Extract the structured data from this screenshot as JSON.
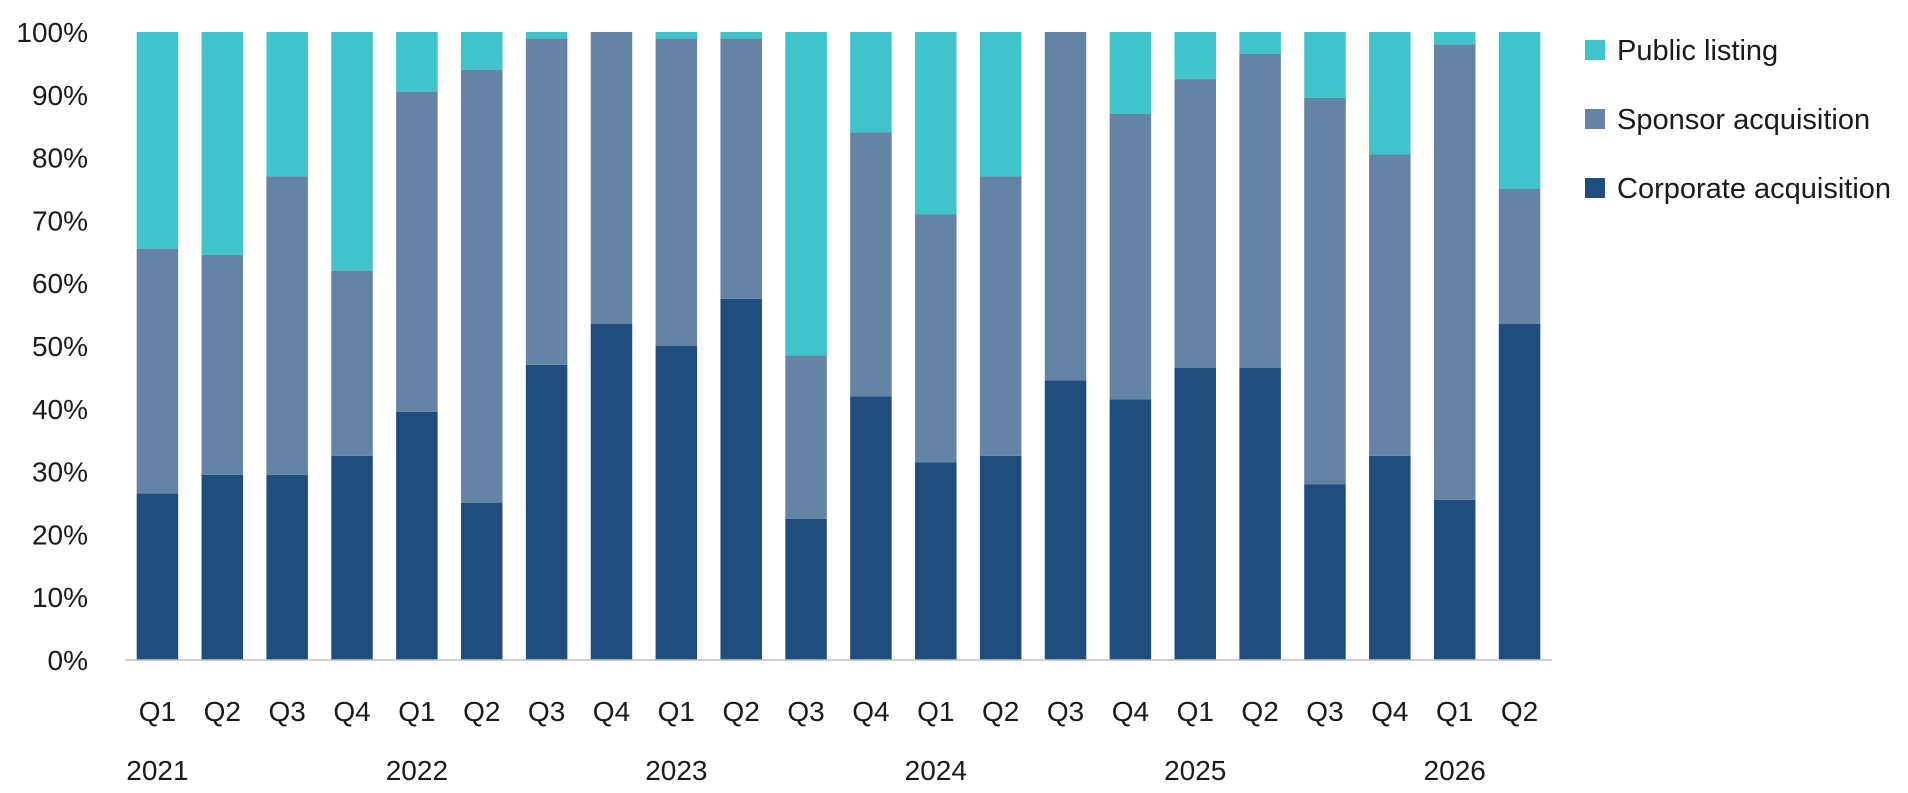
{
  "chart_data": {
    "type": "bar",
    "stacked": true,
    "categories": [
      "Q1",
      "Q2",
      "Q3",
      "Q4",
      "Q1",
      "Q2",
      "Q3",
      "Q4",
      "Q1",
      "Q2",
      "Q3",
      "Q4",
      "Q1",
      "Q2",
      "Q3",
      "Q4",
      "Q1",
      "Q2",
      "Q3",
      "Q4",
      "Q1",
      "Q2"
    ],
    "years": [
      {
        "label": "2021",
        "start_index": 0
      },
      {
        "label": "2022",
        "start_index": 4
      },
      {
        "label": "2023",
        "start_index": 8
      },
      {
        "label": "2024",
        "start_index": 12
      },
      {
        "label": "2025",
        "start_index": 16
      },
      {
        "label": "2026",
        "start_index": 20
      }
    ],
    "series": [
      {
        "name": "Corporate acquisition",
        "color": "#1f4e7e",
        "values": [
          26.5,
          29.5,
          29.5,
          32.5,
          39.5,
          25,
          47,
          53.5,
          50,
          57.5,
          22.5,
          42,
          31.5,
          32.5,
          44.5,
          41.5,
          46.5,
          46.5,
          28,
          32.5,
          25.5,
          53.5
        ]
      },
      {
        "name": "Sponsor acquisition",
        "color": "#6484a5",
        "values": [
          39,
          35,
          47.5,
          29.5,
          51,
          69,
          52,
          46.5,
          49,
          41.5,
          26,
          42,
          39.5,
          44.5,
          55.5,
          45.5,
          46,
          50,
          61.5,
          48,
          72.5,
          21.5
        ]
      },
      {
        "name": "Public listing",
        "color": "#40c4cb",
        "values": [
          34.5,
          35.5,
          23,
          38,
          9.5,
          6,
          1,
          0,
          1,
          1,
          51.5,
          16,
          29,
          23,
          0,
          13,
          7.5,
          3.5,
          10.5,
          19.5,
          2,
          25
        ]
      }
    ],
    "yaxis": {
      "ylim": [
        0,
        100
      ],
      "ticks": [
        0,
        10,
        20,
        30,
        40,
        50,
        60,
        70,
        80,
        90,
        100
      ],
      "tick_suffix": "%"
    },
    "title": "",
    "xlabel": "",
    "ylabel": "",
    "grid": false,
    "legend": {
      "placement": "right-top",
      "order": [
        "Public listing",
        "Sponsor acquisition",
        "Corporate acquisition"
      ]
    }
  }
}
